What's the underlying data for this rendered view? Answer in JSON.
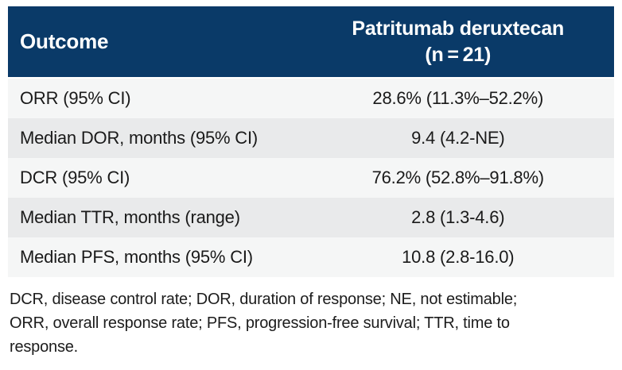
{
  "table": {
    "header": {
      "outcome_label": "Outcome",
      "treatment_line1": "Patritumab deruxtecan",
      "treatment_line2": "(n = 21)"
    },
    "rows": [
      {
        "label": "ORR (95% CI)",
        "value": "28.6% (11.3%–52.2%)"
      },
      {
        "label": "Median DOR, months (95% CI)",
        "value": "9.4 (4.2-NE)"
      },
      {
        "label": "DCR (95% CI)",
        "value": "76.2% (52.8%–91.8%)"
      },
      {
        "label": "Median TTR, months (range)",
        "value": "2.8 (1.3-4.6)"
      },
      {
        "label": "Median PFS, months (95% CI)",
        "value": "10.8 (2.8-16.0)"
      }
    ],
    "footnote_lines": [
      "DCR, disease control rate; DOR, duration of response; NE, not estimable;",
      "ORR, overall response rate; PFS, progression-free survival; TTR, time to",
      "response."
    ]
  },
  "chart_data": {
    "type": "table",
    "columns": [
      "Outcome",
      "Patritumab deruxtecan (n = 21)"
    ],
    "rows": [
      [
        "ORR (95% CI)",
        "28.6% (11.3%–52.2%)"
      ],
      [
        "Median DOR, months (95% CI)",
        "9.4 (4.2-NE)"
      ],
      [
        "DCR (95% CI)",
        "76.2% (52.8%–91.8%)"
      ],
      [
        "Median TTR, months (range)",
        "2.8 (1.3-4.6)"
      ],
      [
        "Median PFS, months (95% CI)",
        "10.8 (2.8-16.0)"
      ]
    ]
  },
  "colors": {
    "header_bg": "#0a3a68",
    "header_text": "#ffffff",
    "row_light": "#f5f6f6",
    "row_dark": "#e9eaeb",
    "body_text": "#1a1a1a"
  }
}
